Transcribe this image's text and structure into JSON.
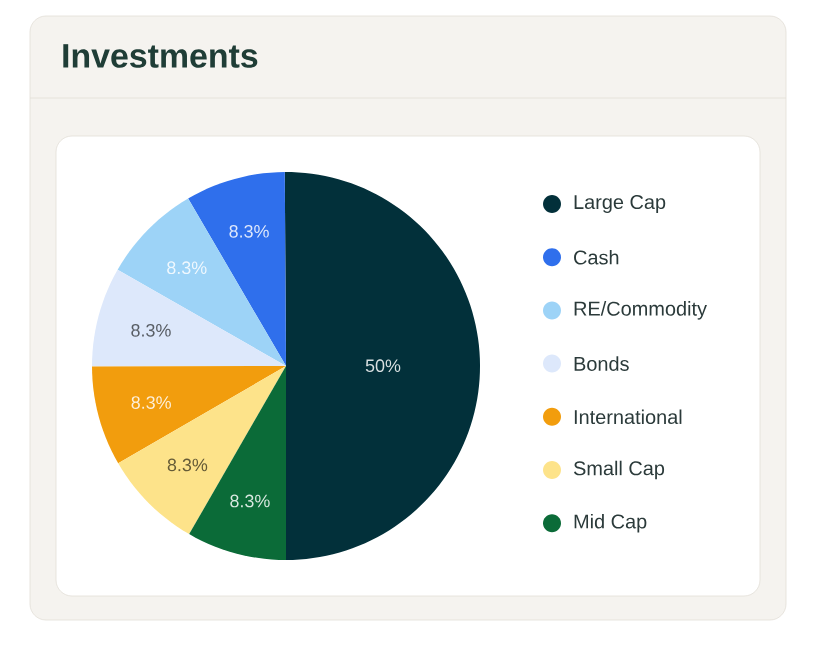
{
  "chart_data": {
    "type": "pie",
    "title": "Investments",
    "categories": [
      "Large Cap",
      "Cash",
      "RE/Commodity",
      "Bonds",
      "International",
      "Small Cap",
      "Mid Cap"
    ],
    "values": [
      50,
      8.3,
      8.3,
      8.3,
      8.3,
      8.3,
      8.3
    ],
    "colors": [
      "#02303a",
      "#2f6fec",
      "#9dd3f7",
      "#dde8fb",
      "#f29d0d",
      "#fde38a",
      "#0b6b38"
    ],
    "value_labels": [
      "50%",
      "8.3%",
      "8.3%",
      "8.3%",
      "8.3%",
      "8.3%",
      "8.3%"
    ],
    "legend": "right"
  }
}
